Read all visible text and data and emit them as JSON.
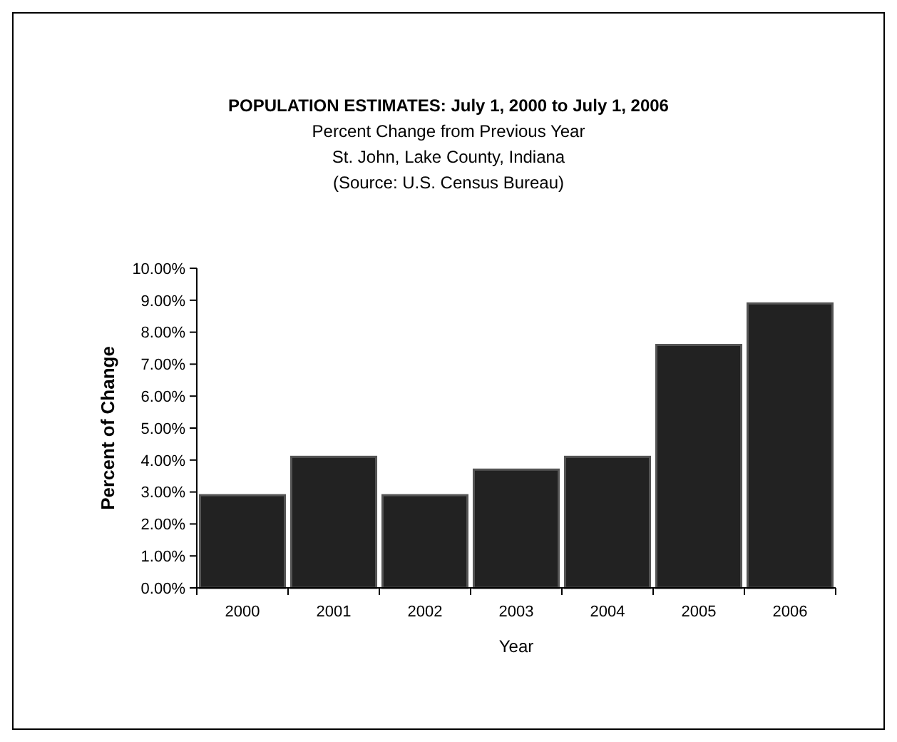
{
  "chart_data": {
    "type": "bar",
    "title": "POPULATION ESTIMATES: July 1, 2000 to July 1, 2006",
    "subtitle": "Percent Change from Previous Year\nSt. John, Lake County, Indiana",
    "annotations": [
      "(Source: U.S. Census Bureau)"
    ],
    "xlabel": "Year",
    "ylabel": "Percent of Change",
    "categories": [
      "2000",
      "2001",
      "2002",
      "2003",
      "2004",
      "2005",
      "2006"
    ],
    "values": [
      2.9,
      4.1,
      2.9,
      3.7,
      4.1,
      7.6,
      8.9
    ],
    "color": "#222222",
    "ylim": [
      0,
      10
    ],
    "yticks": [
      {
        "value": 0,
        "label": "0.00%"
      },
      {
        "value": 1,
        "label": "1.00%"
      },
      {
        "value": 2,
        "label": "2.00%"
      },
      {
        "value": 3,
        "label": "3.00%"
      },
      {
        "value": 4,
        "label": "4.00%"
      },
      {
        "value": 5,
        "label": "5.00%"
      },
      {
        "value": 6,
        "label": "6.00%"
      },
      {
        "value": 7,
        "label": "7.00%"
      },
      {
        "value": 8,
        "label": "8.00%"
      },
      {
        "value": 9,
        "label": "9.00%"
      },
      {
        "value": 10,
        "label": "10.00%"
      }
    ]
  }
}
